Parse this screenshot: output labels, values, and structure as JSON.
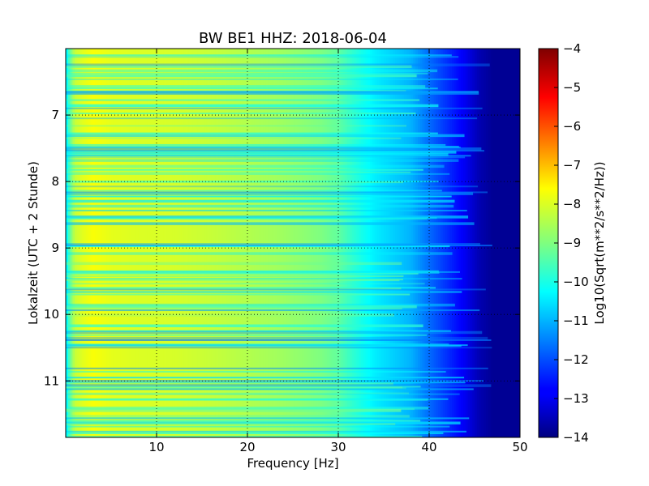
{
  "chart_data": {
    "type": "heatmap",
    "title": "BW BE1 HHZ: 2018-06-04",
    "xlabel": "Frequency [Hz]",
    "ylabel": "Lokalzeit (UTC + 2 Stunde)",
    "xlim": [
      0,
      50
    ],
    "ylim": [
      6.0,
      11.85
    ],
    "y_inverted": true,
    "x_ticks": [
      10,
      20,
      30,
      40,
      50
    ],
    "y_ticks": [
      7,
      8,
      9,
      10,
      11
    ],
    "grid": true,
    "colorbar": {
      "label": "Log10(Sqrt(m**2/s**2/Hz))",
      "range": [
        -14,
        -4
      ],
      "ticks": [
        -4,
        -5,
        -6,
        -7,
        -8,
        -9,
        -10,
        -11,
        -12,
        -13,
        -14
      ],
      "colormap": "jet"
    },
    "spectrum_profile": {
      "frequency_hz": [
        0,
        0.5,
        1,
        2,
        3,
        5,
        8,
        12,
        16,
        20,
        24,
        28,
        30,
        32,
        34,
        36,
        38,
        40,
        42,
        44,
        45.5,
        47,
        50
      ],
      "log10_value": [
        -10.6,
        -9.2,
        -8.3,
        -8.0,
        -7.8,
        -8.0,
        -8.1,
        -8.15,
        -8.3,
        -8.5,
        -8.7,
        -9.0,
        -9.3,
        -9.9,
        -10.4,
        -10.7,
        -11.0,
        -11.7,
        -12.3,
        -12.9,
        -13.5,
        -13.8,
        -13.8
      ]
    }
  }
}
